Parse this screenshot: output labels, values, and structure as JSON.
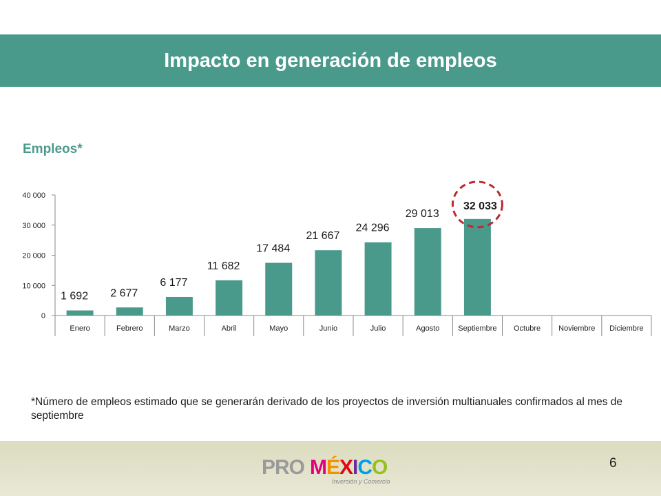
{
  "banner": {
    "title": "Impacto en generación de empleos"
  },
  "subtitle": "Empleos*",
  "colors": {
    "banner": "#4a9a8c",
    "bar": "#4a9a8c",
    "highlight_circle": "#c0272d",
    "footer": "#e2e2cc"
  },
  "chart_data": {
    "type": "bar",
    "categories": [
      "Enero",
      "Febrero",
      "Marzo",
      "Abril",
      "Mayo",
      "Junio",
      "Julio",
      "Agosto",
      "Septiembre",
      "Octubre",
      "Noviembre",
      "Diciembre"
    ],
    "values": [
      1692,
      2677,
      6177,
      11682,
      17484,
      21667,
      24296,
      29013,
      32033,
      null,
      null,
      null
    ],
    "data_labels": [
      "1 692",
      "2 677",
      "6 177",
      "11 682",
      "17 484",
      "21 667",
      "24 296",
      "29 013",
      "32 033",
      "",
      "",
      ""
    ],
    "yticks": [
      0,
      10000,
      20000,
      30000,
      40000
    ],
    "ytick_labels": [
      "0",
      "10 000",
      "20 000",
      "30 000",
      "40 000"
    ],
    "ylim": [
      0,
      40000
    ],
    "grid": false,
    "highlight": {
      "category": "Septiembre",
      "marker": "dashed-circle"
    }
  },
  "footnote": "*Número de empleos estimado que se generarán derivado de los proyectos de inversión multianuales confirmados al mes de septiembre",
  "footer": {
    "page_number": "6",
    "logo": {
      "pro": "PRO",
      "mexico_letters": [
        "M",
        "É",
        "X",
        "I",
        "C",
        "O"
      ],
      "mexico_colors": [
        "#e4007c",
        "#f39200",
        "#e30613",
        "#6f2c91",
        "#009fe3",
        "#95c11f"
      ],
      "sub": "Inversión y Comercio"
    }
  }
}
